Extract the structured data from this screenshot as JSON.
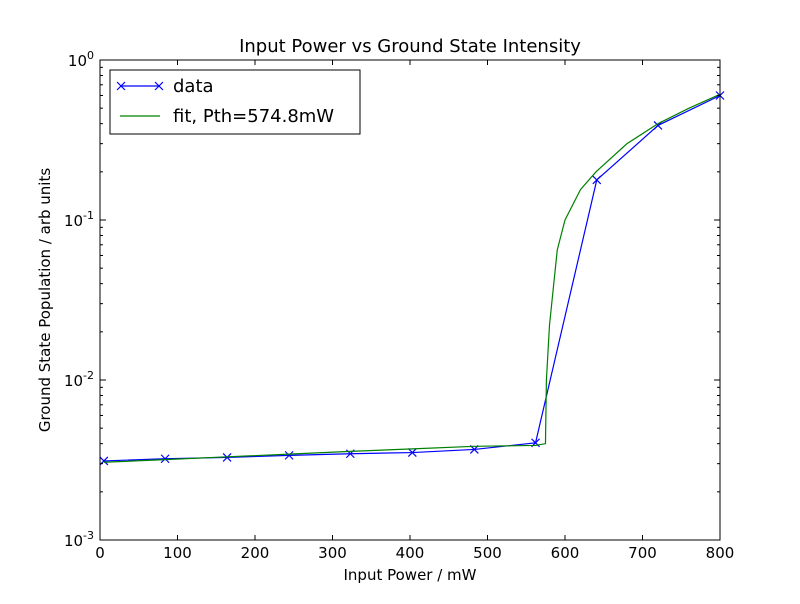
{
  "chart_data": {
    "type": "line",
    "title": "Input Power vs Ground State Intensity",
    "xlabel": "Input Power / mW",
    "ylabel": "Ground State Population / arb units",
    "xlim": [
      0,
      800
    ],
    "ylim": [
      0.001,
      1
    ],
    "yscale": "log",
    "grid": false,
    "legend_position": "top-left",
    "x_ticks": [
      0,
      100,
      200,
      300,
      400,
      500,
      600,
      700,
      800
    ],
    "x_tick_labels": [
      "0",
      "100",
      "200",
      "300",
      "400",
      "500",
      "600",
      "700",
      "800"
    ],
    "y_ticks": [
      0.001,
      0.01,
      0.1,
      1
    ],
    "y_tick_labels": [
      {
        "base": "10",
        "exp": "-3"
      },
      {
        "base": "10",
        "exp": "-2"
      },
      {
        "base": "10",
        "exp": "-1"
      },
      {
        "base": "10",
        "exp": "0"
      }
    ],
    "series": [
      {
        "name": "data",
        "color": "#0000ff",
        "marker": "x",
        "x": [
          5,
          84,
          164,
          244,
          323,
          403,
          483,
          562,
          641,
          720,
          800
        ],
        "y": [
          0.00312,
          0.00322,
          0.00328,
          0.00338,
          0.00346,
          0.00352,
          0.00368,
          0.00405,
          0.178,
          0.39,
          0.6
        ]
      },
      {
        "name": "fit, Pth=574.8mW",
        "color": "#008000",
        "marker": "none",
        "x": [
          5,
          84,
          164,
          244,
          323,
          403,
          483,
          562,
          574.8,
          576,
          580,
          590,
          600,
          620,
          640,
          680,
          720,
          760,
          800
        ],
        "y": [
          0.00306,
          0.00318,
          0.00331,
          0.00344,
          0.00358,
          0.00371,
          0.00385,
          0.0039,
          0.004,
          0.01,
          0.022,
          0.065,
          0.1,
          0.155,
          0.2,
          0.3,
          0.4,
          0.5,
          0.61
        ]
      }
    ]
  }
}
